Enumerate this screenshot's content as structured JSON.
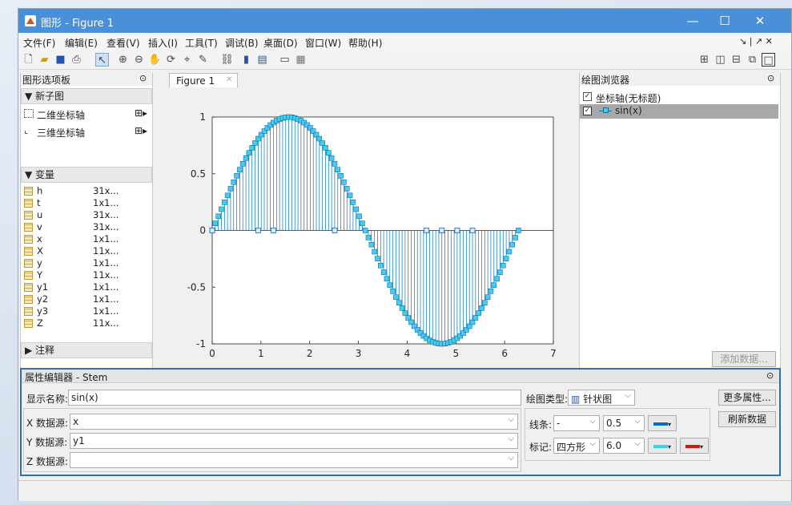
{
  "window": {
    "title": "图形 - Figure 1",
    "minimize": "—",
    "maximize": "☐",
    "close": "✕"
  },
  "menu": [
    "文件(F)",
    "编辑(E)",
    "查看(V)",
    "插入(I)",
    "工具(T)",
    "调试(B)",
    "桌面(D)",
    "窗口(W)",
    "帮助(H)"
  ],
  "menu_right": "↘ | ↗ ✕",
  "left_panel": {
    "title": "图形选项板",
    "new_subplot_header": "▼ 新子图",
    "axes_2d": "二维坐标轴",
    "axes_3d": "三维坐标轴",
    "variables_header": "▼ 变量",
    "variables": [
      {
        "name": "h",
        "size": "31x..."
      },
      {
        "name": "t",
        "size": "1x1..."
      },
      {
        "name": "u",
        "size": "31x..."
      },
      {
        "name": "v",
        "size": "31x..."
      },
      {
        "name": "x",
        "size": "1x1..."
      },
      {
        "name": "X",
        "size": "11x..."
      },
      {
        "name": "y",
        "size": "1x1..."
      },
      {
        "name": "Y",
        "size": "11x..."
      },
      {
        "name": "y1",
        "size": "1x1..."
      },
      {
        "name": "y2",
        "size": "1x1..."
      },
      {
        "name": "y3",
        "size": "1x1..."
      },
      {
        "name": "Z",
        "size": "11x..."
      }
    ],
    "annotations_header": "▶ 注释"
  },
  "figure_tab": {
    "label": "Figure 1",
    "close": "✕"
  },
  "chart_data": {
    "type": "stem",
    "x_range": [
      0,
      7
    ],
    "y_range": [
      -1,
      1
    ],
    "x_ticks": [
      "0",
      "1",
      "2",
      "3",
      "4",
      "5",
      "6",
      "7"
    ],
    "y_ticks": [
      "1",
      "0.5",
      "0",
      "-0.5",
      "-1"
    ],
    "series": [
      {
        "name": "sin(x)",
        "function": "sin",
        "x_start": 0,
        "x_end": 6.2832,
        "points": 101
      }
    ],
    "zero_markers_x": [
      0,
      0.9425,
      1.2566,
      2.5133,
      4.3982,
      4.7124,
      5.0265,
      5.3407
    ],
    "stem_color": "#0072bd",
    "marker_face": "#3fd0f0",
    "marker_edge": "#2266aa",
    "marker": "square"
  },
  "browser": {
    "title": "绘图浏览器",
    "axes_label": "坐标轴(无标题)",
    "series_label": "sin(x)",
    "add_data": "添加数据..."
  },
  "property_editor": {
    "title": "属性编辑器 - Stem",
    "display_name_label": "显示名称:",
    "display_name": "sin(x)",
    "plot_type_label": "绘图类型:",
    "plot_type": "针状图",
    "more_props": "更多属性...",
    "refresh": "刷新数据",
    "x_source_label": "X 数据源:",
    "x_source": "x",
    "y_source_label": "Y 数据源:",
    "y_source": "y1",
    "z_source_label": "Z 数据源:",
    "z_source": "",
    "line_label": "线条:",
    "line_style": "-",
    "line_width": "0.5",
    "marker_label": "标记:",
    "marker_shape": "四方形",
    "marker_size": "6.0"
  }
}
